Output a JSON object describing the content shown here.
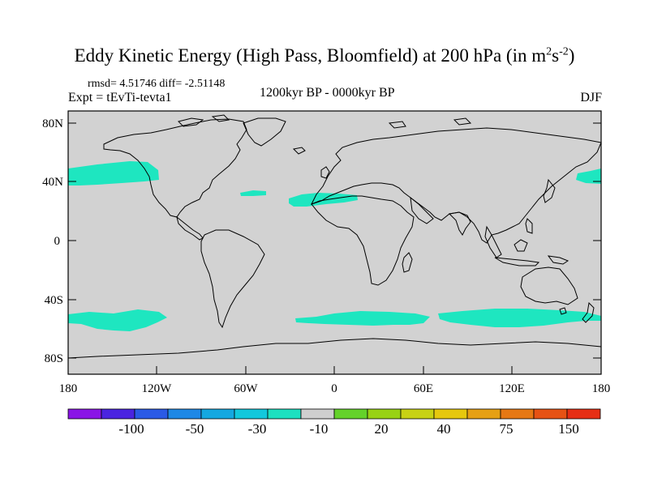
{
  "header": {
    "title": "Eddy Kinetic Energy (High Pass, Bloomfield) at 200 hPa (in m",
    "title_units_m_exp": "2",
    "title_units_s": "s",
    "title_units_s_exp": "-2",
    "title_close": ")",
    "stats": "rmsd= 4.51746 diff= -2.51148",
    "expt": "Expt = tEvTi-tevta1",
    "period": "1200kyr BP - 0000kyr BP",
    "season": "DJF"
  },
  "axes": {
    "lat_labels": [
      "80N",
      "40N",
      "0",
      "40S",
      "80S"
    ],
    "lon_labels": [
      "180",
      "120W",
      "60W",
      "0",
      "60E",
      "120E",
      "180"
    ]
  },
  "colorbar": {
    "colors": [
      "#8a14e6",
      "#4a24e0",
      "#2a5ae6",
      "#1e88e6",
      "#14a8e0",
      "#12c8dc",
      "#1ce0c0",
      "#cfcfcf",
      "#64d22a",
      "#98d214",
      "#c8d214",
      "#e6c80e",
      "#e6a014",
      "#e67814",
      "#e65214",
      "#e62e14"
    ],
    "labels": [
      "-100",
      "-50",
      "-30",
      "-10",
      "20",
      "40",
      "75",
      "150"
    ]
  },
  "map": {
    "land_color": "#d2d2d2",
    "anomaly_color": "#1ee6c0"
  }
}
